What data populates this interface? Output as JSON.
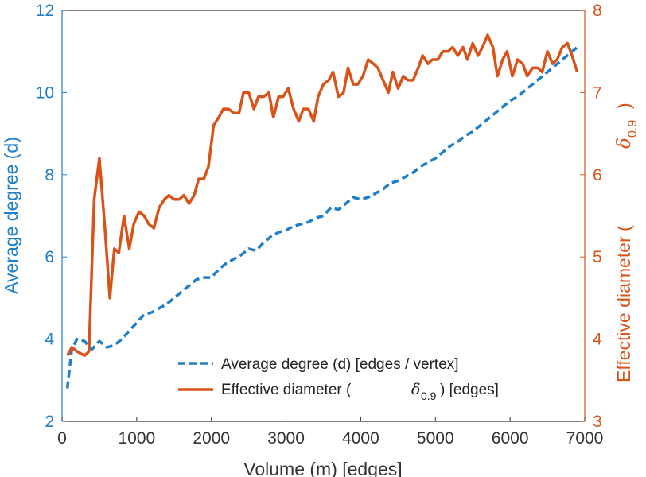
{
  "chart_data": {
    "type": "line",
    "xlabel": "Volume (m) [edges]",
    "ylabel_left": "Average degree (d)",
    "ylabel_right_main": "Effective diameter (",
    "ylabel_right_symbol": "δ",
    "ylabel_right_sub": "0.9",
    "ylabel_right_close": ")",
    "xlim": [
      0,
      7000
    ],
    "ylim_left": [
      2,
      12
    ],
    "ylim_right": [
      3,
      8
    ],
    "x_ticks": [
      "0",
      "1000",
      "2000",
      "3000",
      "4000",
      "5000",
      "6000",
      "7000"
    ],
    "y_left_ticks": [
      "2",
      "4",
      "6",
      "8",
      "10",
      "12"
    ],
    "y_right_ticks": [
      "3",
      "4",
      "5",
      "6",
      "7",
      "8"
    ],
    "colors": {
      "left": "#1f7fc9",
      "right": "#d95319",
      "axis": "#333333"
    },
    "legend": {
      "position": "bottom-right",
      "entries": [
        {
          "label": "Average degree (d) [edges / vertex]"
        },
        {
          "label_pre": "Effective diameter (",
          "label_symbol": "δ",
          "label_sub": "0.9",
          "label_post": ") [edges]"
        }
      ]
    },
    "series": [
      {
        "name": "Average degree (d) [edges / vertex]",
        "axis": "left",
        "style": "dashed",
        "color": "#1f7fc9",
        "x": [
          70,
          130,
          200,
          300,
          400,
          500,
          600,
          700,
          800,
          900,
          1000,
          1100,
          1200,
          1300,
          1400,
          1500,
          1600,
          1700,
          1800,
          1900,
          2000,
          2100,
          2200,
          2300,
          2400,
          2500,
          2600,
          2700,
          2800,
          2900,
          3000,
          3100,
          3200,
          3300,
          3400,
          3500,
          3600,
          3700,
          3800,
          3900,
          4000,
          4100,
          4200,
          4300,
          4400,
          4500,
          4600,
          4700,
          4800,
          4900,
          5000,
          5100,
          5200,
          5300,
          5400,
          5500,
          5600,
          5700,
          5800,
          5900,
          6000,
          6100,
          6200,
          6300,
          6400,
          6500,
          6600,
          6700,
          6800,
          6900
        ],
        "y": [
          2.8,
          3.75,
          4.0,
          3.95,
          3.75,
          3.95,
          3.8,
          3.85,
          4.0,
          4.2,
          4.4,
          4.6,
          4.65,
          4.75,
          4.85,
          5.0,
          5.15,
          5.3,
          5.45,
          5.5,
          5.5,
          5.7,
          5.85,
          5.95,
          6.05,
          6.2,
          6.15,
          6.35,
          6.5,
          6.6,
          6.65,
          6.75,
          6.8,
          6.85,
          6.95,
          7.0,
          7.2,
          7.15,
          7.3,
          7.45,
          7.4,
          7.45,
          7.55,
          7.65,
          7.8,
          7.85,
          7.95,
          8.05,
          8.2,
          8.3,
          8.4,
          8.55,
          8.7,
          8.8,
          8.95,
          9.05,
          9.2,
          9.35,
          9.5,
          9.65,
          9.8,
          9.9,
          10.05,
          10.2,
          10.35,
          10.5,
          10.65,
          10.8,
          10.95,
          11.1
        ]
      },
      {
        "name": "Effective diameter (δ0.9) [edges]",
        "axis": "right",
        "style": "solid",
        "color": "#d95319",
        "x": [
          70,
          130,
          200,
          300,
          360,
          430,
          500,
          570,
          640,
          700,
          760,
          830,
          900,
          960,
          1030,
          1100,
          1160,
          1230,
          1300,
          1370,
          1430,
          1500,
          1570,
          1630,
          1700,
          1770,
          1830,
          1900,
          1960,
          2030,
          2100,
          2160,
          2230,
          2300,
          2370,
          2430,
          2500,
          2570,
          2630,
          2700,
          2770,
          2830,
          2900,
          2960,
          3030,
          3100,
          3170,
          3230,
          3300,
          3370,
          3430,
          3500,
          3570,
          3630,
          3700,
          3770,
          3830,
          3900,
          3960,
          4030,
          4100,
          4170,
          4230,
          4300,
          4370,
          4430,
          4500,
          4570,
          4630,
          4700,
          4770,
          4830,
          4900,
          4960,
          5030,
          5100,
          5170,
          5230,
          5300,
          5370,
          5430,
          5500,
          5570,
          5630,
          5700,
          5770,
          5830,
          5900,
          5960,
          6030,
          6100,
          6170,
          6230,
          6300,
          6370,
          6430,
          6500,
          6570,
          6630,
          6700,
          6770,
          6830,
          6900
        ],
        "y": [
          3.8,
          3.9,
          3.85,
          3.8,
          3.85,
          5.7,
          6.2,
          5.4,
          4.5,
          5.1,
          5.05,
          5.5,
          5.1,
          5.4,
          5.55,
          5.5,
          5.4,
          5.35,
          5.6,
          5.7,
          5.75,
          5.7,
          5.7,
          5.75,
          5.65,
          5.75,
          5.95,
          5.95,
          6.1,
          6.6,
          6.7,
          6.8,
          6.8,
          6.75,
          6.75,
          7.0,
          7.0,
          6.8,
          6.95,
          6.95,
          7.0,
          6.7,
          6.95,
          6.95,
          7.05,
          6.8,
          6.65,
          6.8,
          6.8,
          6.65,
          6.95,
          7.1,
          7.15,
          7.25,
          6.95,
          7.0,
          7.3,
          7.1,
          7.1,
          7.2,
          7.4,
          7.35,
          7.3,
          7.15,
          7.0,
          7.25,
          7.05,
          7.2,
          7.15,
          7.15,
          7.3,
          7.45,
          7.35,
          7.4,
          7.4,
          7.5,
          7.5,
          7.55,
          7.45,
          7.55,
          7.4,
          7.6,
          7.45,
          7.55,
          7.7,
          7.55,
          7.2,
          7.4,
          7.5,
          7.2,
          7.4,
          7.35,
          7.2,
          7.3,
          7.3,
          7.25,
          7.5,
          7.35,
          7.4,
          7.55,
          7.6,
          7.45,
          7.25
        ]
      }
    ]
  }
}
